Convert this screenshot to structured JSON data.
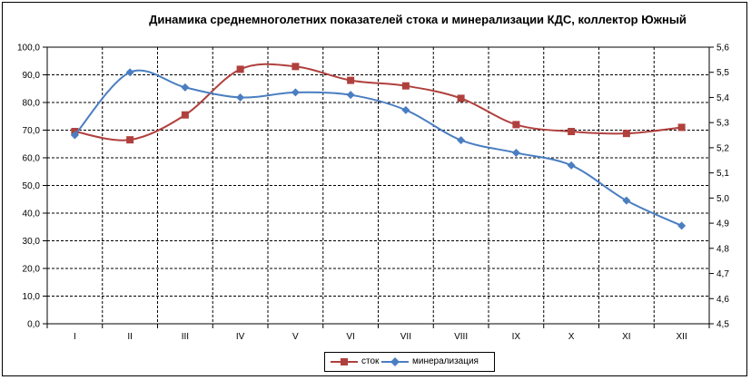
{
  "chart_data": {
    "type": "line",
    "title": "Динамика среднемноголетних  показателей стока и минерализации КДС, коллектор Южный",
    "categories": [
      "I",
      "II",
      "III",
      "IV",
      "V",
      "VI",
      "VII",
      "VIII",
      "IX",
      "X",
      "XI",
      "XII"
    ],
    "series": [
      {
        "name": "сток",
        "color": "#b0403d",
        "marker": "square",
        "axis": "left",
        "values": [
          69.5,
          66.5,
          75.5,
          92.0,
          93.0,
          88.0,
          86.0,
          81.5,
          72.0,
          69.5,
          68.8,
          71.0
        ]
      },
      {
        "name": "минерализация",
        "color": "#4a7ec1",
        "marker": "diamond",
        "axis": "right",
        "values": [
          5.25,
          5.5,
          5.44,
          5.4,
          5.42,
          5.41,
          5.35,
          5.23,
          5.18,
          5.13,
          4.99,
          4.89
        ]
      }
    ],
    "y_left": {
      "range": [
        0,
        100
      ],
      "ticks": [
        "0,0",
        "10,0",
        "20,0",
        "30,0",
        "40,0",
        "50,0",
        "60,0",
        "70,0",
        "80,0",
        "90,0",
        "100,0"
      ]
    },
    "y_right": {
      "range": [
        4.5,
        5.6
      ],
      "ticks": [
        "4,5",
        "4,6",
        "4,7",
        "4,8",
        "4,9",
        "5,0",
        "5,1",
        "5,2",
        "5,3",
        "5,4",
        "5,5",
        "5,6"
      ]
    },
    "grid": true,
    "grid_style": "dashed",
    "legend_position": "bottom"
  }
}
